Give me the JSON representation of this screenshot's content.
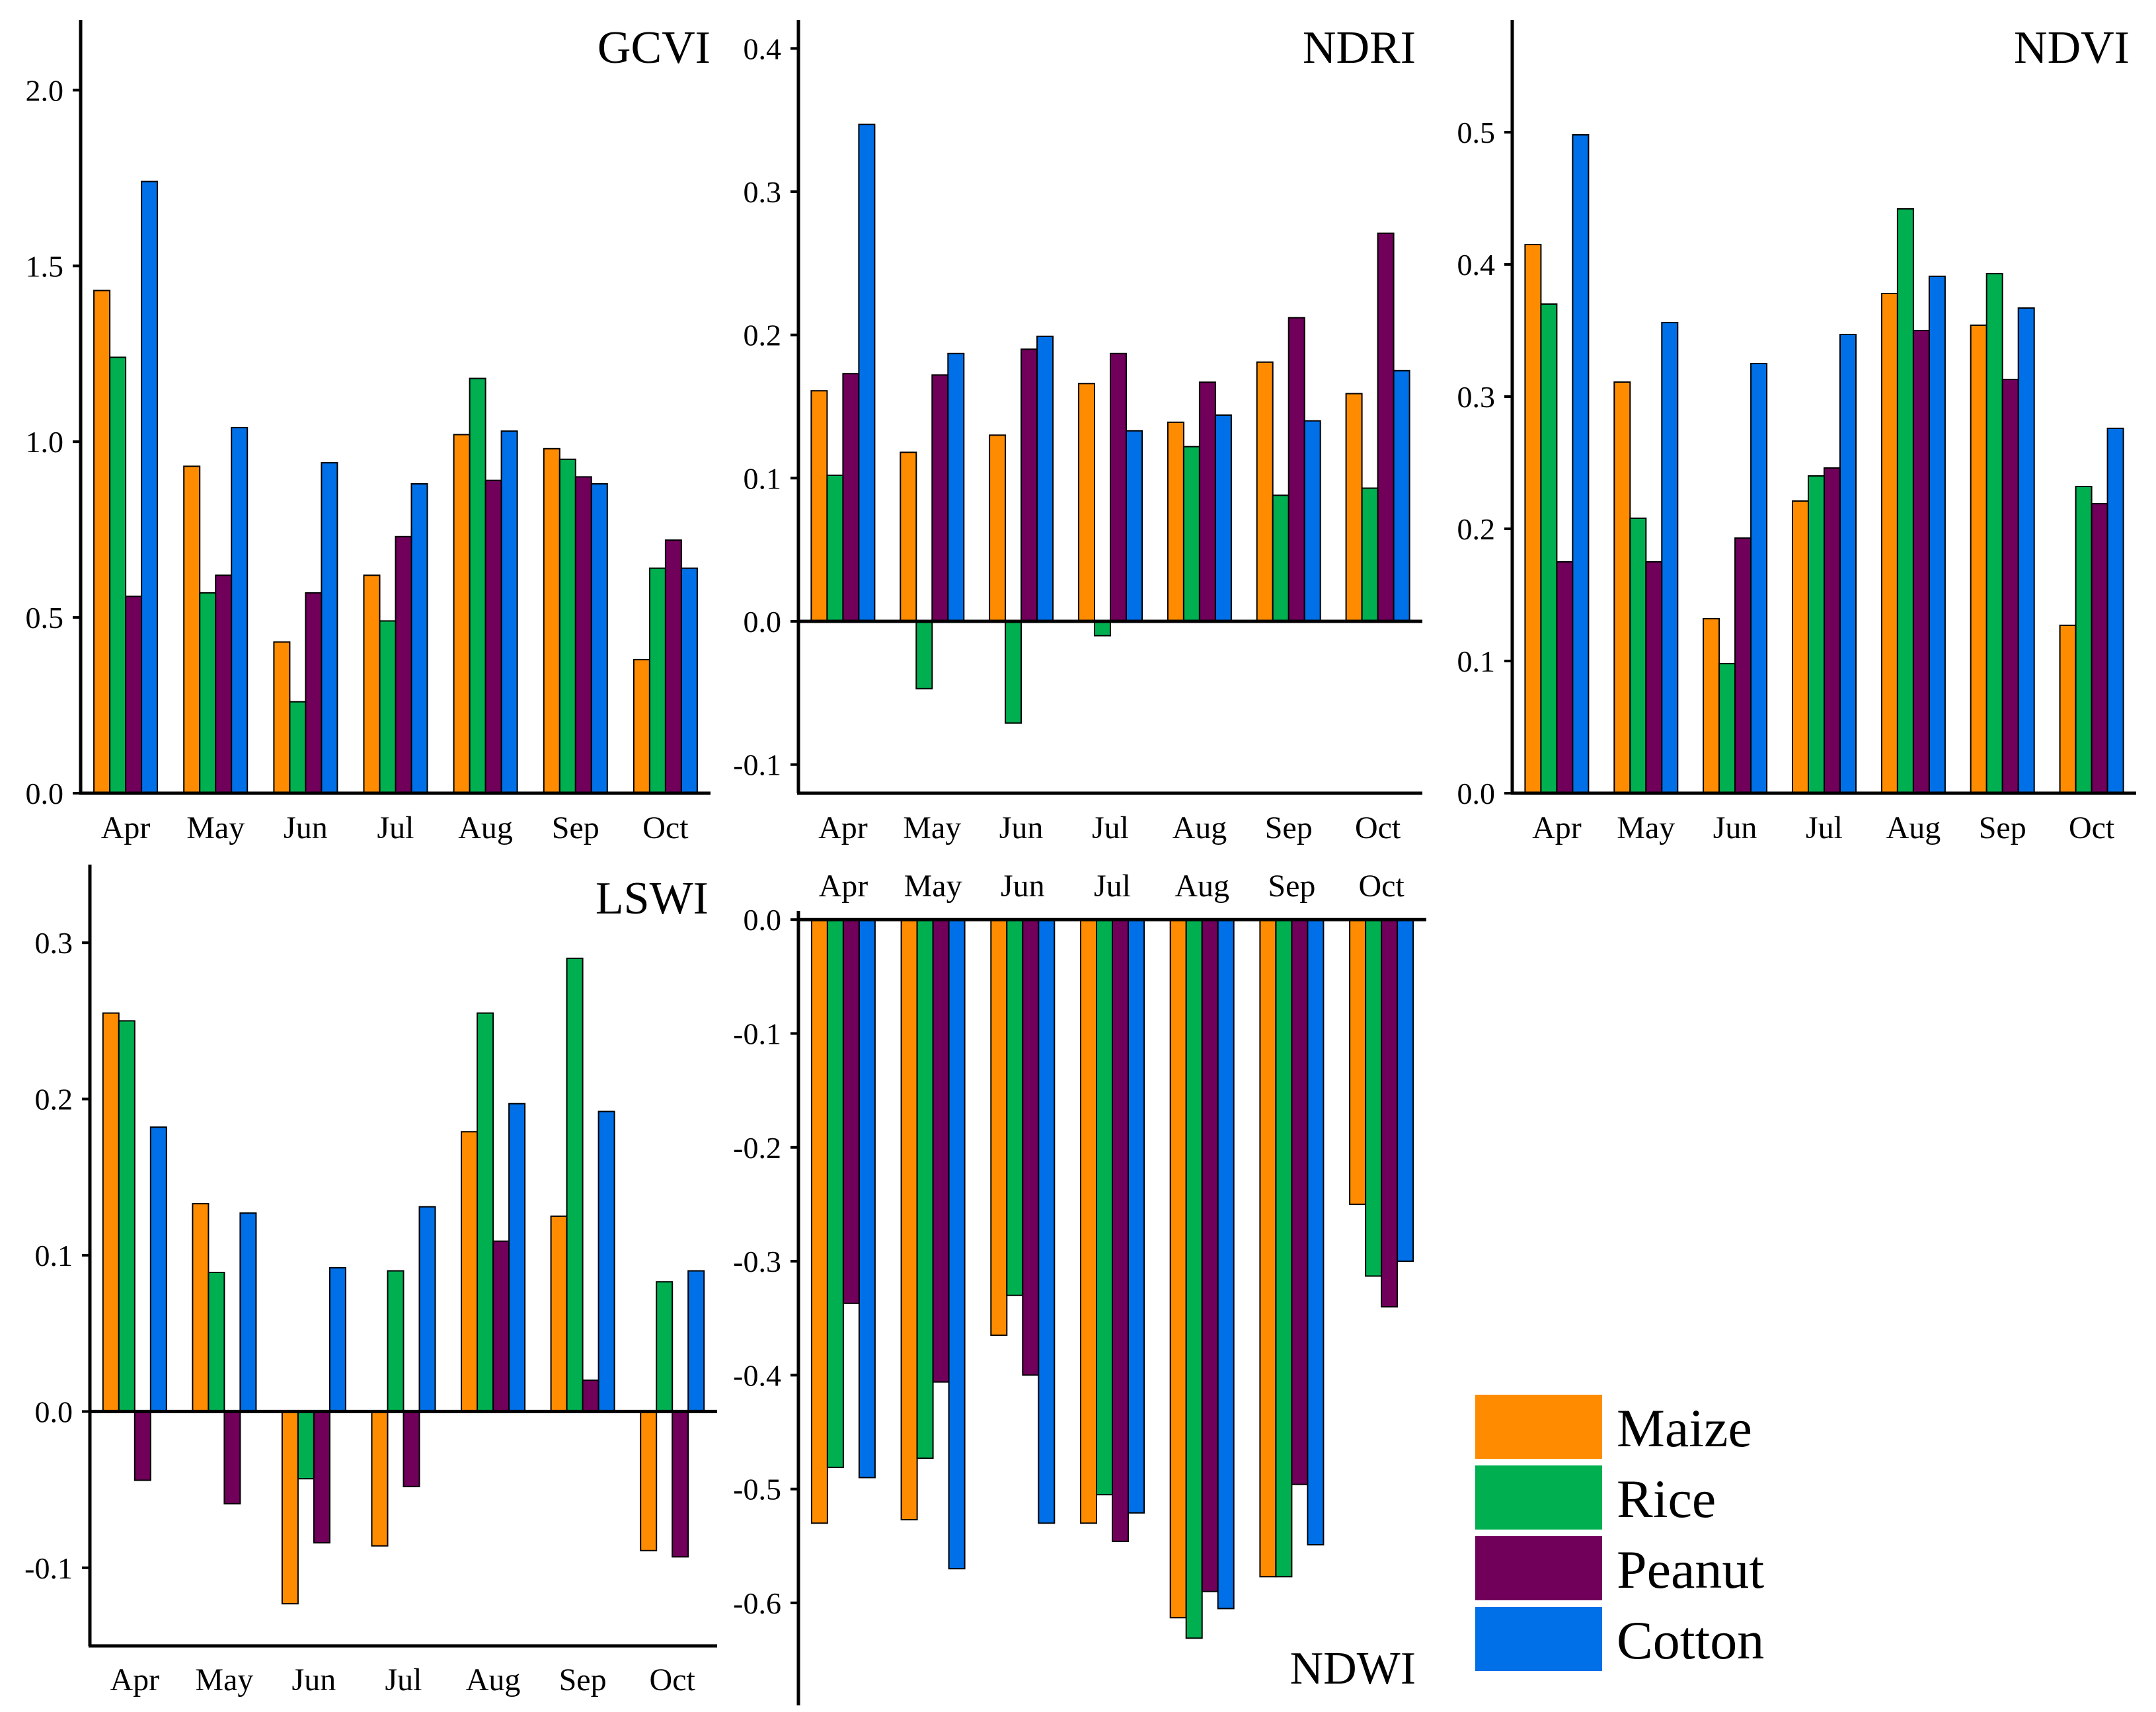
{
  "colors": {
    "Maize": "#ff8c00",
    "Rice": "#00b050",
    "Peanut": "#70005a",
    "Cotton": "#0070e8"
  },
  "legend": {
    "items": [
      "Maize",
      "Rice",
      "Peanut",
      "Cotton"
    ]
  },
  "chart_data": [
    {
      "type": "bar",
      "title": "GCVI",
      "categories": [
        "Apr",
        "May",
        "Jun",
        "Jul",
        "Aug",
        "Sep",
        "Oct"
      ],
      "ylim": [
        0,
        2.2
      ],
      "yticks": [
        "0.0",
        "0.5",
        "1.0",
        "1.5",
        "2.0"
      ],
      "series": [
        {
          "name": "Maize",
          "values": [
            1.43,
            0.93,
            0.43,
            0.62,
            1.02,
            0.98,
            0.38
          ]
        },
        {
          "name": "Rice",
          "values": [
            1.24,
            0.57,
            0.26,
            0.49,
            1.18,
            0.95,
            0.64
          ]
        },
        {
          "name": "Peanut",
          "values": [
            0.56,
            0.62,
            0.57,
            0.73,
            0.89,
            0.9,
            0.72
          ]
        },
        {
          "name": "Cotton",
          "values": [
            1.74,
            1.04,
            0.94,
            0.88,
            1.03,
            0.88,
            0.64
          ]
        }
      ]
    },
    {
      "type": "bar",
      "title": "NDRI",
      "categories": [
        "Apr",
        "May",
        "Jun",
        "Jul",
        "Aug",
        "Sep",
        "Oct"
      ],
      "ylim": [
        -0.12,
        0.42
      ],
      "yticks": [
        "-0.1",
        "0.0",
        "0.1",
        "0.2",
        "0.3",
        "0.4"
      ],
      "series": [
        {
          "name": "Maize",
          "values": [
            0.161,
            0.118,
            0.13,
            0.166,
            0.139,
            0.181,
            0.159
          ]
        },
        {
          "name": "Rice",
          "values": [
            0.102,
            -0.047,
            -0.071,
            -0.01,
            0.122,
            0.088,
            0.093
          ]
        },
        {
          "name": "Peanut",
          "values": [
            0.173,
            0.172,
            0.19,
            0.187,
            0.167,
            0.212,
            0.271
          ]
        },
        {
          "name": "Cotton",
          "values": [
            0.347,
            0.187,
            0.199,
            0.133,
            0.144,
            0.14,
            0.175
          ]
        }
      ]
    },
    {
      "type": "bar",
      "title": "NDVI",
      "categories": [
        "Apr",
        "May",
        "Jun",
        "Jul",
        "Aug",
        "Sep",
        "Oct"
      ],
      "ylim": [
        0,
        0.585
      ],
      "yticks": [
        "0.0",
        "0.1",
        "0.2",
        "0.3",
        "0.4",
        "0.5"
      ],
      "series": [
        {
          "name": "Maize",
          "values": [
            0.415,
            0.311,
            0.132,
            0.221,
            0.378,
            0.354,
            0.127
          ]
        },
        {
          "name": "Rice",
          "values": [
            0.37,
            0.208,
            0.098,
            0.24,
            0.442,
            0.393,
            0.232
          ]
        },
        {
          "name": "Peanut",
          "values": [
            0.175,
            0.175,
            0.193,
            0.246,
            0.35,
            0.313,
            0.219
          ]
        },
        {
          "name": "Cotton",
          "values": [
            0.498,
            0.356,
            0.325,
            0.347,
            0.391,
            0.367,
            0.276
          ]
        }
      ]
    },
    {
      "type": "bar",
      "title": "LSWI",
      "categories": [
        "Apr",
        "May",
        "Jun",
        "Jul",
        "Aug",
        "Sep",
        "Oct"
      ],
      "ylim": [
        -0.15,
        0.35
      ],
      "yticks": [
        "-0.1",
        "0.0",
        "0.1",
        "0.2",
        "0.3"
      ],
      "series": [
        {
          "name": "Maize",
          "values": [
            0.255,
            0.133,
            -0.123,
            -0.086,
            0.179,
            0.125,
            -0.089
          ]
        },
        {
          "name": "Rice",
          "values": [
            0.25,
            0.089,
            -0.043,
            0.09,
            0.255,
            0.29,
            0.083
          ]
        },
        {
          "name": "Peanut",
          "values": [
            -0.044,
            -0.059,
            -0.084,
            -0.048,
            0.109,
            0.02,
            -0.093
          ]
        },
        {
          "name": "Cotton",
          "values": [
            0.182,
            0.127,
            0.092,
            0.131,
            0.197,
            0.192,
            0.09
          ]
        }
      ]
    },
    {
      "type": "bar",
      "title": "NDWI",
      "categories": [
        "Apr",
        "May",
        "Jun",
        "Jul",
        "Aug",
        "Sep",
        "Oct"
      ],
      "ylim": [
        -0.69,
        0.01
      ],
      "yticks": [
        "0.0",
        "-0.1",
        "-0.2",
        "-0.3",
        "-0.4",
        "-0.5",
        "-0.6"
      ],
      "series": [
        {
          "name": "Maize",
          "values": [
            -0.53,
            -0.527,
            -0.365,
            -0.53,
            -0.613,
            -0.577,
            -0.25
          ]
        },
        {
          "name": "Rice",
          "values": [
            -0.481,
            -0.473,
            -0.33,
            -0.505,
            -0.631,
            -0.577,
            -0.313
          ]
        },
        {
          "name": "Peanut",
          "values": [
            -0.337,
            -0.406,
            -0.4,
            -0.546,
            -0.59,
            -0.496,
            -0.34
          ]
        },
        {
          "name": "Cotton",
          "values": [
            -0.49,
            -0.57,
            -0.53,
            -0.521,
            -0.605,
            -0.549,
            -0.3
          ]
        }
      ]
    }
  ]
}
